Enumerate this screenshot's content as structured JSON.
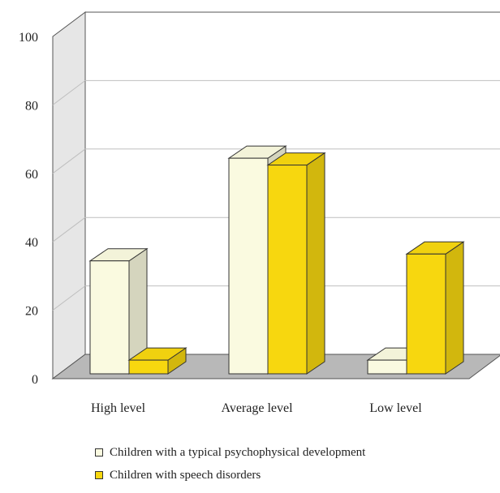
{
  "chart_data": {
    "type": "bar",
    "categories": [
      "High level",
      "Average  level",
      "Low level"
    ],
    "series": [
      {
        "name": "Children with a typical psychophysical development",
        "values": [
          33,
          63,
          4
        ],
        "color": "#fafae0"
      },
      {
        "name": "Children with speech disorders",
        "values": [
          4,
          61,
          35
        ],
        "color": "#f7d70f"
      }
    ],
    "y_ticks": [
      "0",
      "20",
      "40",
      "60",
      "80",
      "100"
    ],
    "ylim": [
      0,
      100
    ],
    "grid": true,
    "legend_position": "bottom",
    "colors": {
      "floor": "#b8b8b8",
      "back_wall": "#ffffff",
      "side_wall": "#e6e6e6",
      "gridline": "#bfbfbf"
    }
  }
}
